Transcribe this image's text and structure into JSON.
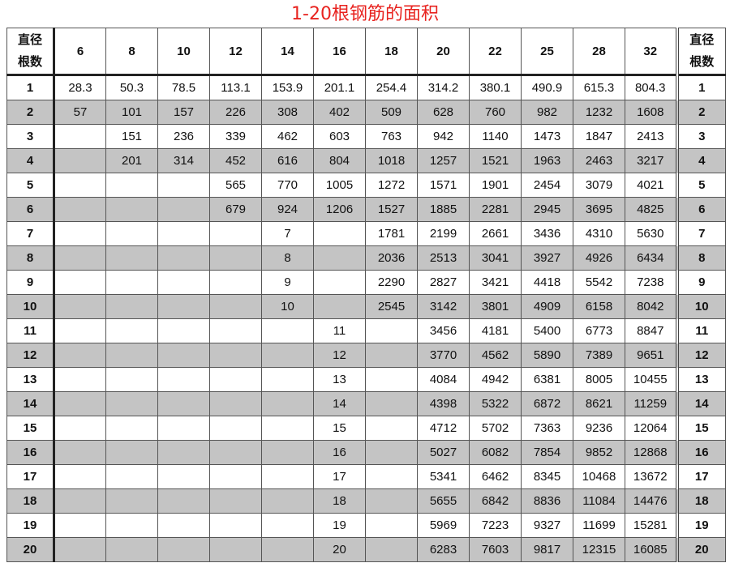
{
  "title": "1-20根钢筋的面积",
  "header": {
    "corner_line1": "直径",
    "corner_line2": "根数",
    "diameters": [
      "6",
      "8",
      "10",
      "12",
      "14",
      "16",
      "18",
      "20",
      "22",
      "25",
      "28",
      "32"
    ]
  },
  "rows": [
    {
      "n": "1",
      "v": [
        "28.3",
        "50.3",
        "78.5",
        "113.1",
        "153.9",
        "201.1",
        "254.4",
        "314.2",
        "380.1",
        "490.9",
        "615.3",
        "804.3"
      ]
    },
    {
      "n": "2",
      "v": [
        "57",
        "101",
        "157",
        "226",
        "308",
        "402",
        "509",
        "628",
        "760",
        "982",
        "1232",
        "1608"
      ]
    },
    {
      "n": "3",
      "v": [
        "",
        "151",
        "236",
        "339",
        "462",
        "603",
        "763",
        "942",
        "1140",
        "1473",
        "1847",
        "2413"
      ]
    },
    {
      "n": "4",
      "v": [
        "",
        "201",
        "314",
        "452",
        "616",
        "804",
        "1018",
        "1257",
        "1521",
        "1963",
        "2463",
        "3217"
      ]
    },
    {
      "n": "5",
      "v": [
        "",
        "",
        "",
        "565",
        "770",
        "1005",
        "1272",
        "1571",
        "1901",
        "2454",
        "3079",
        "4021"
      ]
    },
    {
      "n": "6",
      "v": [
        "",
        "",
        "",
        "679",
        "924",
        "1206",
        "1527",
        "1885",
        "2281",
        "2945",
        "3695",
        "4825"
      ]
    },
    {
      "n": "7",
      "v": [
        "",
        "",
        "",
        "",
        "7",
        "",
        "1781",
        "2199",
        "2661",
        "3436",
        "4310",
        "5630"
      ]
    },
    {
      "n": "8",
      "v": [
        "",
        "",
        "",
        "",
        "8",
        "",
        "2036",
        "2513",
        "3041",
        "3927",
        "4926",
        "6434"
      ]
    },
    {
      "n": "9",
      "v": [
        "",
        "",
        "",
        "",
        "9",
        "",
        "2290",
        "2827",
        "3421",
        "4418",
        "5542",
        "7238"
      ]
    },
    {
      "n": "10",
      "v": [
        "",
        "",
        "",
        "",
        "10",
        "",
        "2545",
        "3142",
        "3801",
        "4909",
        "6158",
        "8042"
      ]
    },
    {
      "n": "11",
      "v": [
        "",
        "",
        "",
        "",
        "",
        "11",
        "",
        "3456",
        "4181",
        "5400",
        "6773",
        "8847"
      ]
    },
    {
      "n": "12",
      "v": [
        "",
        "",
        "",
        "",
        "",
        "12",
        "",
        "3770",
        "4562",
        "5890",
        "7389",
        "9651"
      ]
    },
    {
      "n": "13",
      "v": [
        "",
        "",
        "",
        "",
        "",
        "13",
        "",
        "4084",
        "4942",
        "6381",
        "8005",
        "10455"
      ]
    },
    {
      "n": "14",
      "v": [
        "",
        "",
        "",
        "",
        "",
        "14",
        "",
        "4398",
        "5322",
        "6872",
        "8621",
        "11259"
      ]
    },
    {
      "n": "15",
      "v": [
        "",
        "",
        "",
        "",
        "",
        "15",
        "",
        "4712",
        "5702",
        "7363",
        "9236",
        "12064"
      ]
    },
    {
      "n": "16",
      "v": [
        "",
        "",
        "",
        "",
        "",
        "16",
        "",
        "5027",
        "6082",
        "7854",
        "9852",
        "12868"
      ]
    },
    {
      "n": "17",
      "v": [
        "",
        "",
        "",
        "",
        "",
        "17",
        "",
        "5341",
        "6462",
        "8345",
        "10468",
        "13672"
      ]
    },
    {
      "n": "18",
      "v": [
        "",
        "",
        "",
        "",
        "",
        "18",
        "",
        "5655",
        "6842",
        "8836",
        "11084",
        "14476"
      ]
    },
    {
      "n": "19",
      "v": [
        "",
        "",
        "",
        "",
        "",
        "19",
        "",
        "5969",
        "7223",
        "9327",
        "11699",
        "15281"
      ]
    },
    {
      "n": "20",
      "v": [
        "",
        "",
        "",
        "",
        "",
        "20",
        "",
        "6283",
        "7603",
        "9817",
        "12315",
        "16085"
      ]
    }
  ],
  "colors": {
    "title": "#e8231f",
    "shade": "#c4c4c4"
  }
}
